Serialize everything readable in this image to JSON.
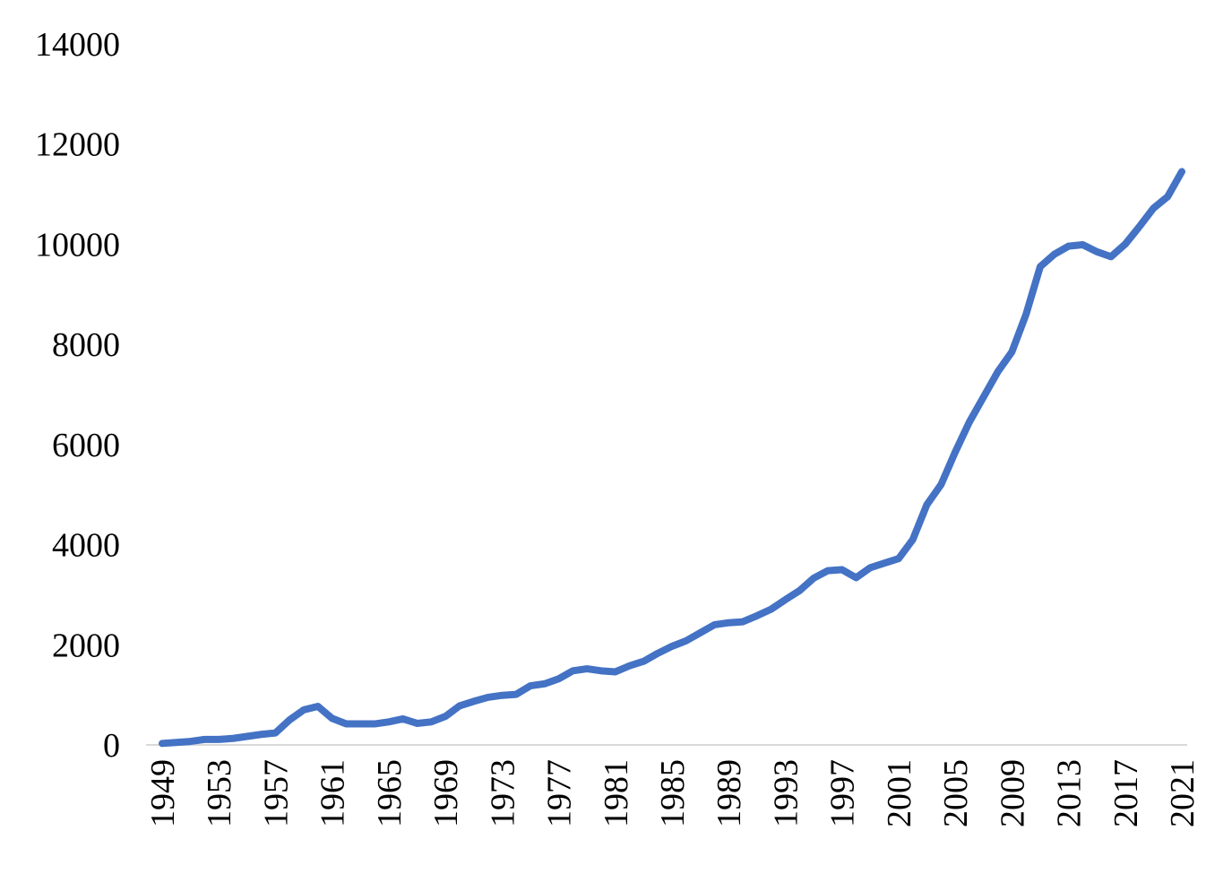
{
  "chart_data": {
    "type": "line",
    "title": "",
    "xlabel": "",
    "ylabel": "",
    "ylim": [
      0,
      14000
    ],
    "yticks": [
      0,
      2000,
      4000,
      6000,
      8000,
      10000,
      12000,
      14000
    ],
    "xtick_labels": [
      "1949",
      "1953",
      "1957",
      "1961",
      "1965",
      "1969",
      "1973",
      "1977",
      "1981",
      "1985",
      "1989",
      "1993",
      "1997",
      "2001",
      "2005",
      "2009",
      "2013",
      "2017",
      "2021"
    ],
    "grid": false,
    "legend": "none",
    "line_color": "#4472C4",
    "axis_color": "#D9D9D9",
    "series": [
      {
        "x": [
          1949,
          1950,
          1951,
          1952,
          1953,
          1954,
          1955,
          1956,
          1957,
          1958,
          1959,
          1960,
          1961,
          1962,
          1963,
          1964,
          1965,
          1966,
          1967,
          1968,
          1969,
          1970,
          1971,
          1972,
          1973,
          1974,
          1975,
          1976,
          1977,
          1978,
          1979,
          1980,
          1981,
          1982,
          1983,
          1984,
          1985,
          1986,
          1987,
          1988,
          1989,
          1990,
          1991,
          1992,
          1993,
          1994,
          1995,
          1996,
          1997,
          1998,
          1999,
          2000,
          2001,
          2002,
          2003,
          2004,
          2005,
          2006,
          2007,
          2008,
          2009,
          2010,
          2011,
          2012,
          2013,
          2014,
          2015,
          2016,
          2017,
          2018,
          2019,
          2020,
          2021
        ],
        "values": [
          30,
          50,
          70,
          110,
          110,
          130,
          170,
          210,
          240,
          500,
          700,
          770,
          530,
          420,
          420,
          420,
          460,
          520,
          430,
          460,
          570,
          780,
          870,
          950,
          990,
          1010,
          1180,
          1220,
          1320,
          1480,
          1520,
          1480,
          1460,
          1580,
          1670,
          1830,
          1970,
          2080,
          2240,
          2400,
          2440,
          2460,
          2580,
          2710,
          2900,
          3080,
          3330,
          3480,
          3500,
          3340,
          3540,
          3630,
          3720,
          4100,
          4800,
          5200,
          5850,
          6450,
          6950,
          7450,
          7850,
          8600,
          9550,
          9800,
          9960,
          9990,
          9850,
          9750,
          10000,
          10350,
          10720,
          10950,
          11450
        ]
      }
    ]
  }
}
